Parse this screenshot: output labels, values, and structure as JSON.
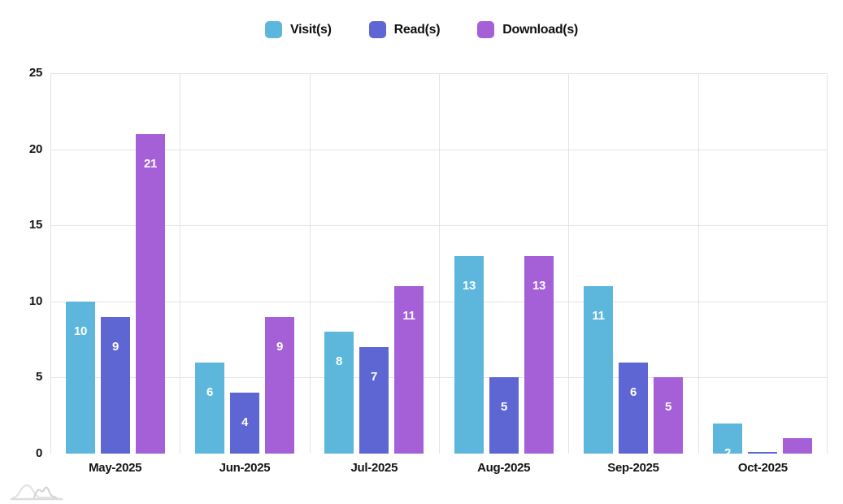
{
  "legend": {
    "items": [
      {
        "label": "Visit(s)",
        "color": "#5db7dc"
      },
      {
        "label": "Read(s)",
        "color": "#5e66d3"
      },
      {
        "label": "Download(s)",
        "color": "#a560d8"
      }
    ]
  },
  "chart_data": {
    "type": "bar",
    "title": "",
    "categories": [
      "May-2025",
      "Jun-2025",
      "Jul-2025",
      "Aug-2025",
      "Sep-2025",
      "Oct-2025"
    ],
    "series": [
      {
        "name": "Visit(s)",
        "color": "#5db7dc",
        "values": [
          10,
          6,
          8,
          13,
          11,
          2
        ]
      },
      {
        "name": "Read(s)",
        "color": "#5e66d3",
        "values": [
          9,
          4,
          7,
          5,
          6,
          0
        ]
      },
      {
        "name": "Download(s)",
        "color": "#a560d8",
        "values": [
          21,
          9,
          11,
          13,
          5,
          1
        ]
      }
    ],
    "xlabel": "",
    "ylabel": "",
    "ylim": [
      0,
      25
    ],
    "y_ticks": [
      0,
      5,
      10,
      15,
      20,
      25
    ],
    "grid": true,
    "legend_position": "top",
    "value_labels": "inside-top-white"
  },
  "colors": {
    "grid": "#e4e4e4",
    "axis_baseline": "#cbcbcb",
    "tick_text": "#141414",
    "watermark": "#e0e0e0"
  },
  "watermark": {
    "name": "anychart-watermark-logo"
  }
}
